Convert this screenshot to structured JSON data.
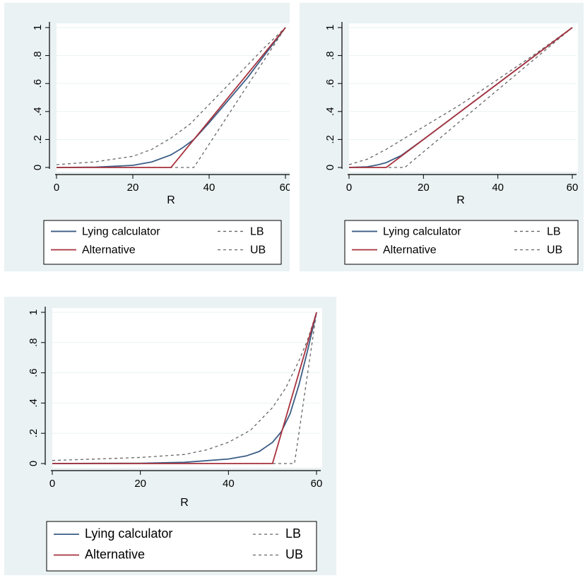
{
  "colors": {
    "panel_bg": "#eaf2f3",
    "lying_calculator": "#3b5d85",
    "alternative": "#a8323e",
    "bounds": "#666666"
  },
  "legend": {
    "lying_calculator": "Lying calculator",
    "alternative": "Alternative",
    "lb": "LB",
    "ub": "UB"
  },
  "chart_data": [
    {
      "type": "line",
      "xlabel": "R",
      "ylabel": "",
      "xlim": [
        0,
        60
      ],
      "ylim": [
        0,
        1
      ],
      "xticks": [
        0,
        20,
        40,
        60
      ],
      "xtick_labels": [
        "0",
        "20",
        "40",
        "60"
      ],
      "yticks": [
        0,
        0.2,
        0.4,
        0.6,
        0.8,
        1
      ],
      "ytick_labels": [
        "0",
        ".2",
        ".4",
        ".6",
        ".8",
        "1"
      ],
      "legend_position": "bottom",
      "series": [
        {
          "name": "Lying calculator",
          "color": "#3b5d85",
          "dash": false,
          "x": [
            0,
            10,
            20,
            25,
            30,
            33,
            36,
            40,
            45,
            50,
            55,
            60
          ],
          "y": [
            0,
            0.002,
            0.015,
            0.04,
            0.09,
            0.14,
            0.2,
            0.32,
            0.48,
            0.64,
            0.82,
            1
          ]
        },
        {
          "name": "Alternative",
          "color": "#a8323e",
          "dash": false,
          "x": [
            0,
            30,
            60
          ],
          "y": [
            0,
            0,
            1
          ]
        },
        {
          "name": "LB",
          "color": "#666666",
          "dash": true,
          "x": [
            0,
            10,
            20,
            25,
            30,
            35,
            40,
            45,
            50,
            55,
            60
          ],
          "y": [
            0.02,
            0.04,
            0.08,
            0.13,
            0.21,
            0.31,
            0.45,
            0.59,
            0.73,
            0.87,
            1
          ]
        },
        {
          "name": "UB",
          "color": "#666666",
          "dash": true,
          "x": [
            0,
            30,
            36,
            60
          ],
          "y": [
            0,
            0,
            0,
            1
          ]
        }
      ]
    },
    {
      "type": "line",
      "xlabel": "R",
      "ylabel": "",
      "xlim": [
        0,
        60
      ],
      "ylim": [
        0,
        1
      ],
      "xticks": [
        0,
        20,
        40,
        60
      ],
      "xtick_labels": [
        "0",
        "20",
        "40",
        "60"
      ],
      "yticks": [
        0,
        0.2,
        0.4,
        0.6,
        0.8,
        1
      ],
      "ytick_labels": [
        "0",
        ".2",
        ".4",
        ".6",
        ".8",
        "1"
      ],
      "legend_position": "bottom",
      "series": [
        {
          "name": "Lying calculator",
          "color": "#3b5d85",
          "dash": false,
          "x": [
            0,
            5,
            8,
            10,
            12,
            14,
            20,
            30,
            40,
            50,
            60
          ],
          "y": [
            0,
            0.005,
            0.02,
            0.035,
            0.06,
            0.085,
            0.2,
            0.4,
            0.6,
            0.8,
            1
          ]
        },
        {
          "name": "Alternative",
          "color": "#a8323e",
          "dash": false,
          "x": [
            0,
            10,
            60
          ],
          "y": [
            0,
            0,
            1
          ]
        },
        {
          "name": "LB",
          "color": "#666666",
          "dash": true,
          "x": [
            0,
            5,
            10,
            15,
            20,
            30,
            40,
            50,
            60
          ],
          "y": [
            0.02,
            0.06,
            0.13,
            0.21,
            0.29,
            0.45,
            0.63,
            0.81,
            1
          ]
        },
        {
          "name": "UB",
          "color": "#666666",
          "dash": true,
          "x": [
            0,
            10,
            15,
            60
          ],
          "y": [
            0,
            0,
            0,
            1
          ]
        }
      ]
    },
    {
      "type": "line",
      "xlabel": "R",
      "ylabel": "",
      "xlim": [
        0,
        60
      ],
      "ylim": [
        0,
        1
      ],
      "xticks": [
        0,
        20,
        40,
        60
      ],
      "xtick_labels": [
        "0",
        "20",
        "40",
        "60"
      ],
      "yticks": [
        0,
        0.2,
        0.4,
        0.6,
        0.8,
        1
      ],
      "ytick_labels": [
        "0",
        ".2",
        ".4",
        ".6",
        ".8",
        "1"
      ],
      "legend_position": "bottom",
      "series": [
        {
          "name": "Lying calculator",
          "color": "#3b5d85",
          "dash": false,
          "x": [
            0,
            20,
            30,
            40,
            44,
            47,
            50,
            52,
            54,
            56,
            58,
            60
          ],
          "y": [
            0,
            0.002,
            0.008,
            0.03,
            0.05,
            0.08,
            0.14,
            0.21,
            0.33,
            0.52,
            0.75,
            1
          ]
        },
        {
          "name": "Alternative",
          "color": "#a8323e",
          "dash": false,
          "x": [
            0,
            50,
            60
          ],
          "y": [
            0,
            0,
            1
          ]
        },
        {
          "name": "LB",
          "color": "#666666",
          "dash": true,
          "x": [
            0,
            10,
            20,
            30,
            35,
            40,
            45,
            50,
            53,
            56,
            58,
            60
          ],
          "y": [
            0.02,
            0.03,
            0.04,
            0.06,
            0.09,
            0.14,
            0.22,
            0.37,
            0.5,
            0.68,
            0.82,
            1
          ]
        },
        {
          "name": "UB",
          "color": "#666666",
          "dash": true,
          "x": [
            0,
            50,
            55,
            60
          ],
          "y": [
            0,
            0,
            0,
            1
          ]
        }
      ]
    }
  ]
}
